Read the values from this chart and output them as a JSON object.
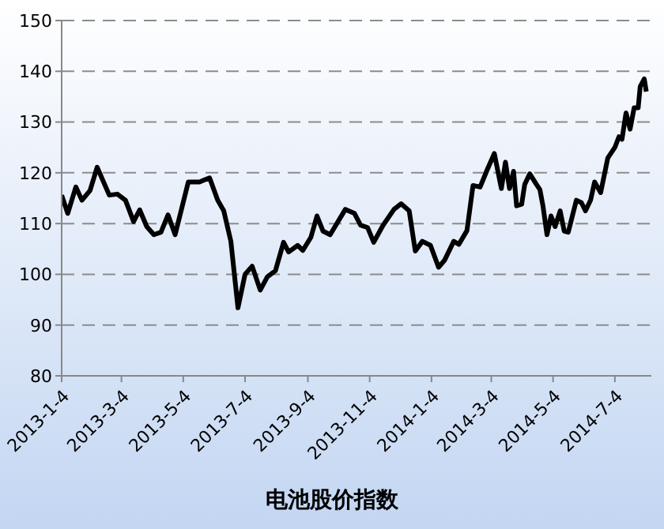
{
  "chart_data": {
    "type": "line",
    "title": "电池股价指数",
    "x": [
      "2013-01-04",
      "2013-01-10",
      "2013-01-18",
      "2013-01-24",
      "2013-02-01",
      "2013-02-08",
      "2013-02-20",
      "2013-02-28",
      "2013-03-08",
      "2013-03-16",
      "2013-03-22",
      "2013-03-29",
      "2013-04-05",
      "2013-04-12",
      "2013-04-19",
      "2013-04-26",
      "2013-05-09",
      "2013-05-20",
      "2013-05-30",
      "2013-06-07",
      "2013-06-13",
      "2013-06-20",
      "2013-06-27",
      "2013-07-04",
      "2013-07-11",
      "2013-07-19",
      "2013-07-26",
      "2013-08-03",
      "2013-08-11",
      "2013-08-16",
      "2013-08-25",
      "2013-08-30",
      "2013-09-07",
      "2013-09-13",
      "2013-09-19",
      "2013-09-26",
      "2013-10-11",
      "2013-10-20",
      "2013-10-26",
      "2013-11-02",
      "2013-11-08",
      "2013-11-17",
      "2013-11-28",
      "2013-12-05",
      "2013-12-13",
      "2013-12-19",
      "2013-12-26",
      "2014-01-03",
      "2014-01-11",
      "2014-01-17",
      "2014-01-26",
      "2014-01-31",
      "2014-02-08",
      "2014-02-14",
      "2014-02-21",
      "2014-02-28",
      "2014-03-07",
      "2014-03-14",
      "2014-03-18",
      "2014-03-22",
      "2014-03-26",
      "2014-03-29",
      "2014-04-03",
      "2014-04-06",
      "2014-04-11",
      "2014-04-17",
      "2014-04-21",
      "2014-04-24",
      "2014-04-28",
      "2014-05-02",
      "2014-05-06",
      "2014-05-11",
      "2014-05-15",
      "2014-05-19",
      "2014-05-27",
      "2014-06-01",
      "2014-06-05",
      "2014-06-10",
      "2014-06-14",
      "2014-06-20",
      "2014-06-27",
      "2014-07-04",
      "2014-07-08",
      "2014-07-11",
      "2014-07-15",
      "2014-07-19",
      "2014-07-23",
      "2014-07-27",
      "2014-07-29",
      "2014-08-02",
      "2014-08-04"
    ],
    "series": [
      {
        "color": "#000000",
        "values": [
          115.6,
          112,
          117.2,
          114.6,
          116.5,
          121.1,
          115.6,
          115.8,
          114.6,
          110.4,
          112.7,
          109.4,
          107.8,
          108.3,
          111.7,
          107.8,
          118.2,
          118.2,
          119,
          114.6,
          112.5,
          106.5,
          93.4,
          100,
          101.6,
          96.9,
          99.5,
          100.7,
          106.3,
          104.4,
          105.7,
          104.7,
          107.3,
          111.5,
          108.5,
          107.8,
          112.8,
          112,
          109.7,
          109.2,
          106.3,
          109.6,
          112.8,
          113.9,
          112.5,
          104.6,
          106.5,
          105.7,
          101.4,
          102.8,
          106.5,
          105.9,
          108.6,
          117.5,
          117.2,
          120.6,
          123.8,
          116.9,
          122.1,
          116.9,
          120.3,
          113.5,
          113.8,
          117.7,
          119.8,
          117.9,
          116.7,
          113.5,
          107.8,
          111.5,
          109.4,
          112.5,
          108.5,
          108.3,
          114.6,
          114.1,
          112.5,
          114.6,
          118.2,
          116.1,
          122.9,
          125,
          127.1,
          126.6,
          131.8,
          128.6,
          132.8,
          132.8,
          137,
          138.5,
          136
        ]
      }
    ],
    "xlim": [
      "2013-01-04",
      "2014-08-09"
    ],
    "xticks": [
      {
        "value": "2013-01-04",
        "label": "2013-1-4"
      },
      {
        "value": "2013-03-04",
        "label": "2013-3-4"
      },
      {
        "value": "2013-05-04",
        "label": "2013-5-4"
      },
      {
        "value": "2013-07-04",
        "label": "2013-7-4"
      },
      {
        "value": "2013-09-04",
        "label": "2013-9-4"
      },
      {
        "value": "2013-11-04",
        "label": "2013-11-4"
      },
      {
        "value": "2014-01-04",
        "label": "2014-1-4"
      },
      {
        "value": "2014-03-04",
        "label": "2014-3-4"
      },
      {
        "value": "2014-05-04",
        "label": "2014-5-4"
      },
      {
        "value": "2014-07-04",
        "label": "2014-7-4"
      }
    ],
    "ylim": [
      80,
      150
    ],
    "yticks": [
      80,
      90,
      100,
      110,
      120,
      130,
      140,
      150
    ],
    "grid": "y",
    "legend": false,
    "marker": "none",
    "line_style": "solid"
  }
}
